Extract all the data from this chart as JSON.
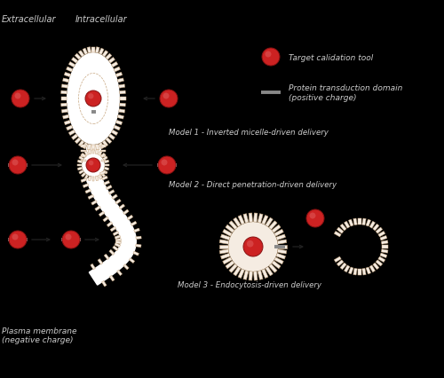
{
  "bg_color": "#000000",
  "membrane_color": "#f5ece2",
  "membrane_edge_color": "#c8a882",
  "spike_color": "#c8a882",
  "cargo_fill": "#cc2222",
  "cargo_edge": "#881111",
  "ptd_color": "#888888",
  "arrow_color": "#222222",
  "text_color": "#cccccc",
  "title1": "Model 1 - Inverted micelle-driven delivery",
  "title2": "Model 2 - Direct penetration-driven delivery",
  "title3": "Model 3 - Endocytosis-driven delivery",
  "label_extracellular": "Extracellular",
  "label_intracellular": "Intracellular",
  "label_plasma": "Plasma membrane\n(negative charge)",
  "legend_cargo": "Target calidation tool",
  "legend_ptd": "Protein transduction domain\n(positive charge)"
}
